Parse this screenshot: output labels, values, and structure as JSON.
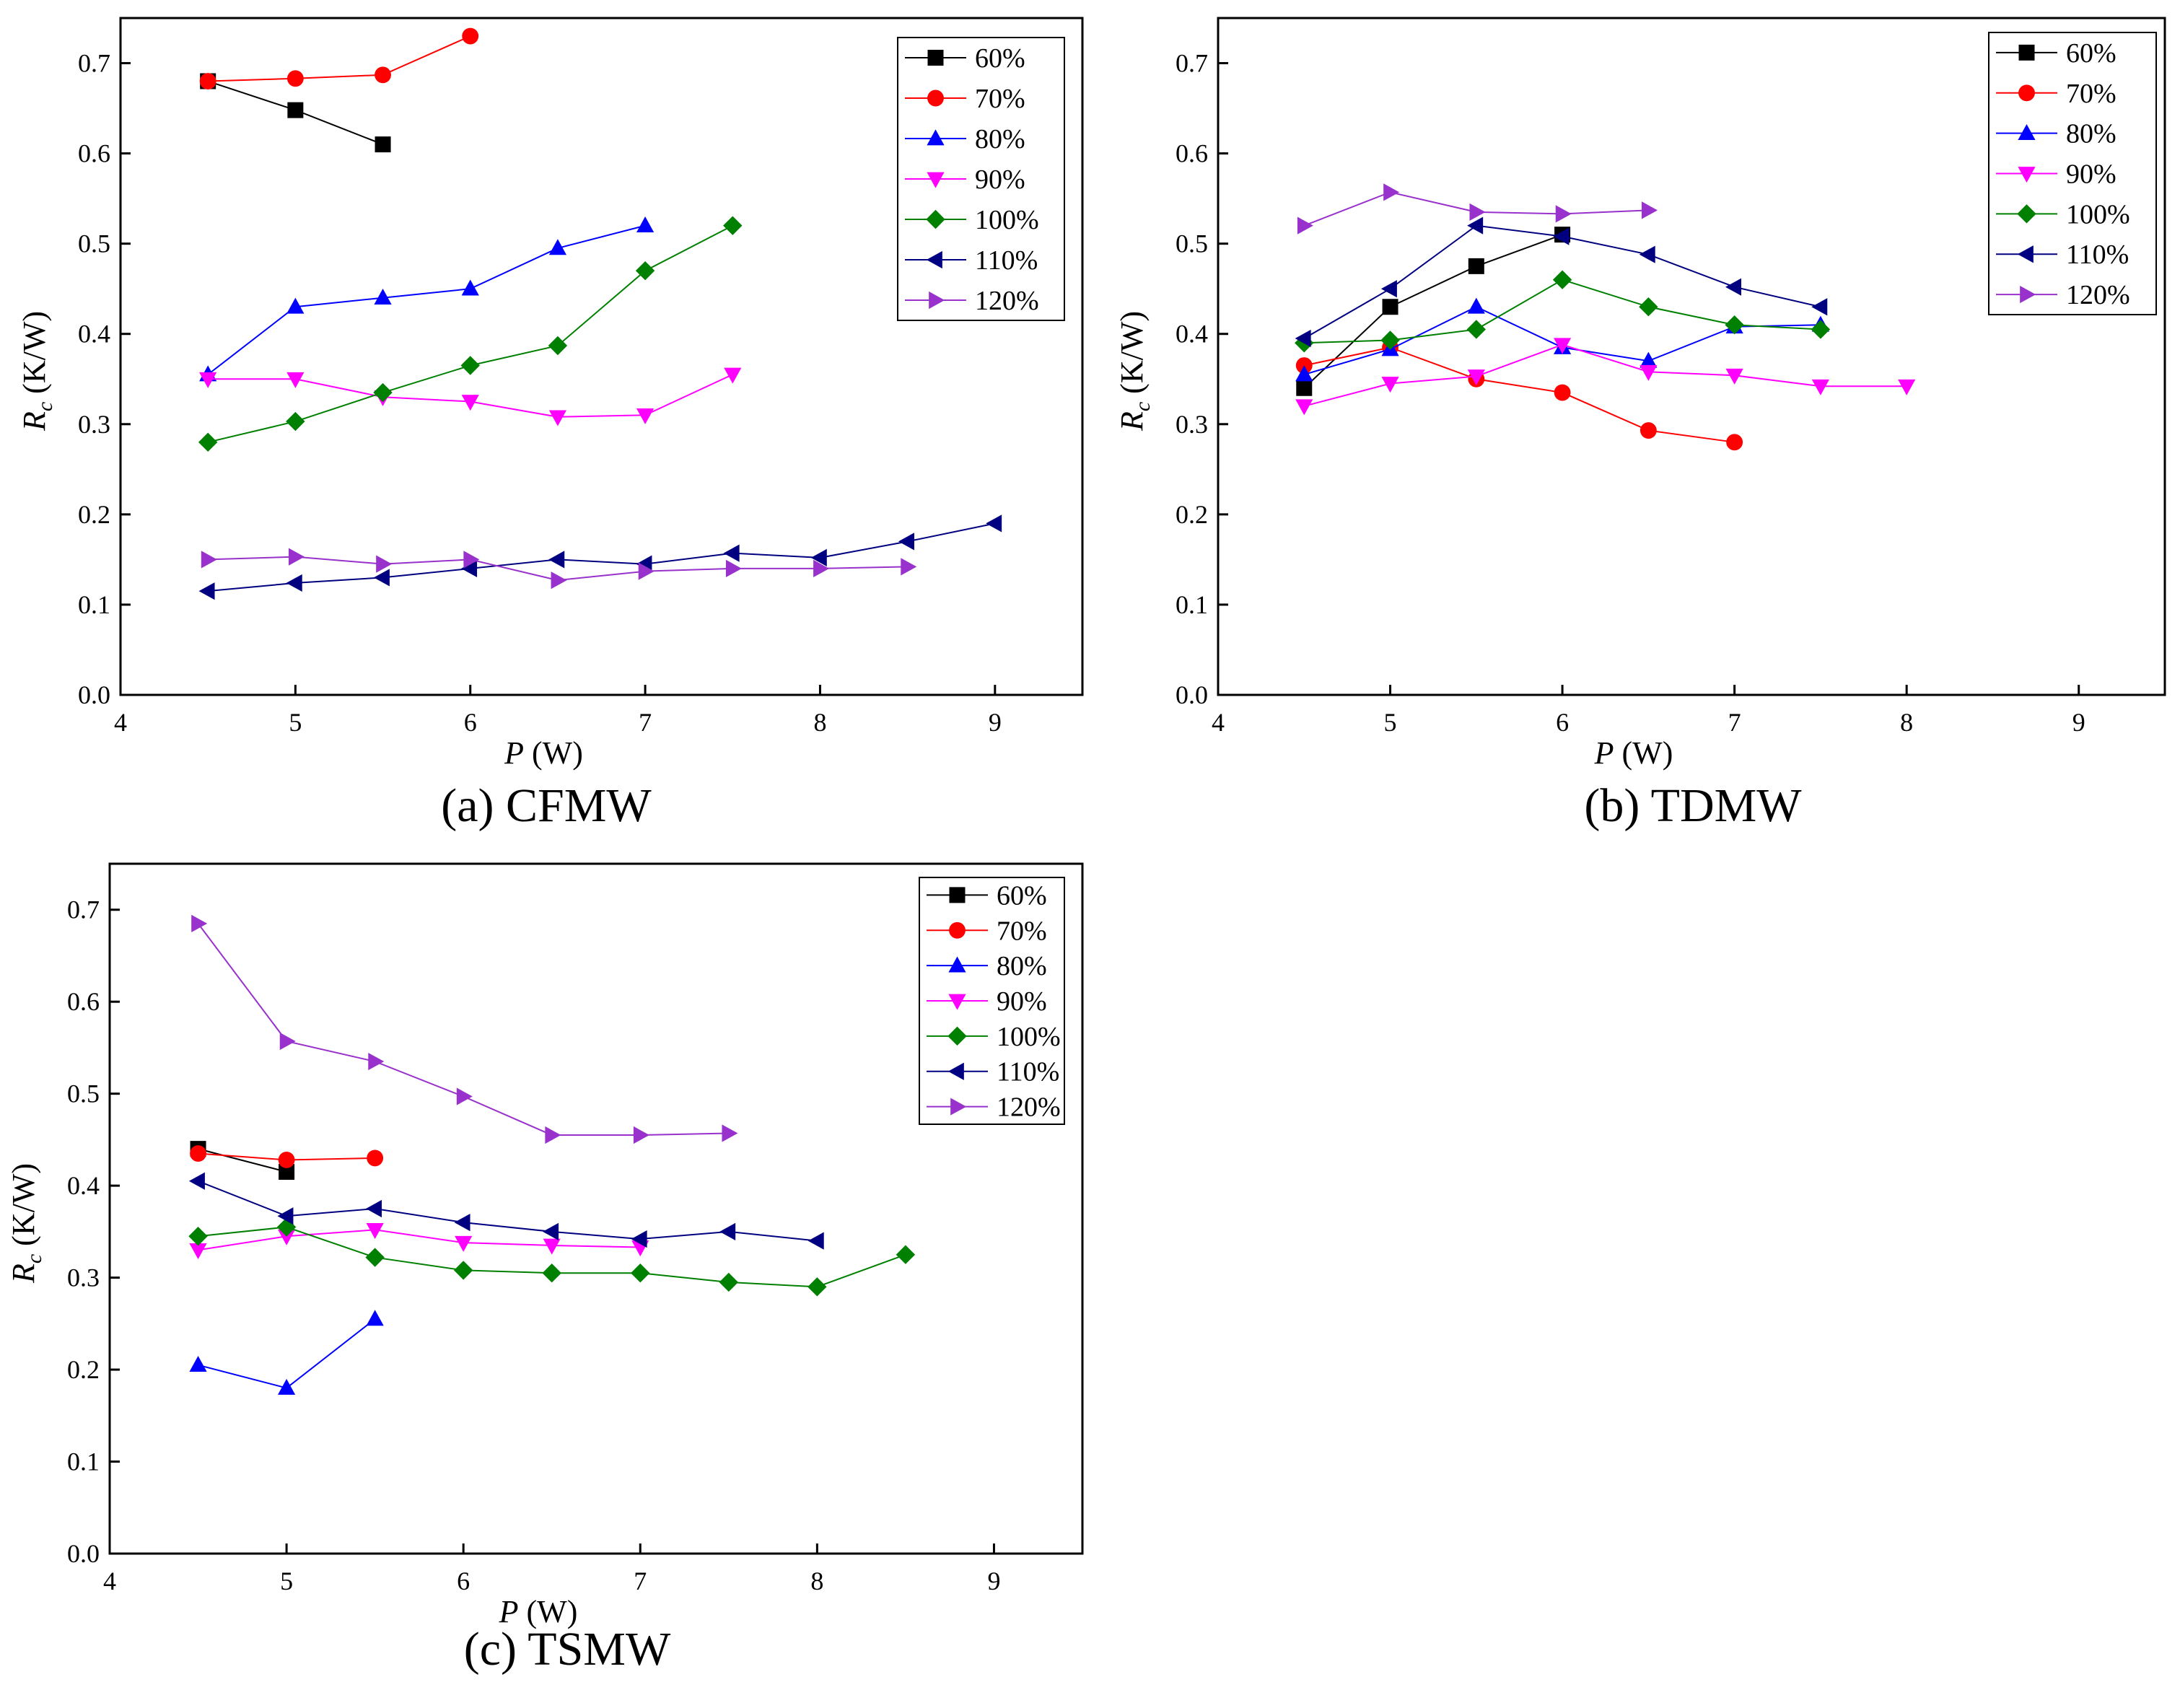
{
  "chart_data": [
    {
      "type": "line",
      "caption": "(a) CFMW",
      "xlabel_var": "P",
      "xlabel_unit": " (W)",
      "ylabel_var": "R",
      "ylabel_sub": "c",
      "ylabel_unit": " (K/W)",
      "xlim": [
        4,
        9.5
      ],
      "ylim": [
        0.0,
        0.75
      ],
      "xticks": [
        "4",
        "5",
        "6",
        "7",
        "8",
        "9"
      ],
      "yticks": [
        "0.0",
        "0.1",
        "0.2",
        "0.3",
        "0.4",
        "0.5",
        "0.6",
        "0.7"
      ],
      "legend_position": "top-right",
      "series": [
        {
          "name": "60%",
          "color": "#000000",
          "marker": "square",
          "x": [
            4.5,
            5.0,
            5.5
          ],
          "y": [
            0.68,
            0.648,
            0.61
          ]
        },
        {
          "name": "70%",
          "color": "#ff0000",
          "marker": "circle",
          "x": [
            4.5,
            5.0,
            5.5,
            6.0
          ],
          "y": [
            0.68,
            0.683,
            0.687,
            0.73
          ]
        },
        {
          "name": "80%",
          "color": "#0000ff",
          "marker": "triangle-up",
          "x": [
            4.5,
            5.0,
            5.5,
            6.0,
            6.5,
            7.0
          ],
          "y": [
            0.355,
            0.43,
            0.44,
            0.45,
            0.495,
            0.52
          ]
        },
        {
          "name": "90%",
          "color": "#ff00ff",
          "marker": "triangle-down",
          "x": [
            4.5,
            5.0,
            5.5,
            6.0,
            6.5,
            7.0,
            7.5
          ],
          "y": [
            0.35,
            0.35,
            0.33,
            0.325,
            0.308,
            0.31,
            0.355
          ]
        },
        {
          "name": "100%",
          "color": "#008000",
          "marker": "diamond",
          "x": [
            4.5,
            5.0,
            5.5,
            6.0,
            6.5,
            7.0,
            7.5
          ],
          "y": [
            0.28,
            0.303,
            0.335,
            0.365,
            0.387,
            0.47,
            0.52
          ]
        },
        {
          "name": "110%",
          "color": "#000080",
          "marker": "triangle-left",
          "x": [
            4.5,
            5.0,
            5.5,
            6.0,
            6.5,
            7.0,
            7.5,
            8.0,
            8.5,
            9.0
          ],
          "y": [
            0.115,
            0.124,
            0.13,
            0.14,
            0.15,
            0.145,
            0.157,
            0.152,
            0.17,
            0.19
          ]
        },
        {
          "name": "120%",
          "color": "#9932cc",
          "marker": "triangle-right",
          "x": [
            4.5,
            5.0,
            5.5,
            6.0,
            6.5,
            7.0,
            7.5,
            8.0,
            8.5
          ],
          "y": [
            0.15,
            0.153,
            0.145,
            0.15,
            0.127,
            0.137,
            0.14,
            0.14,
            0.142
          ]
        }
      ]
    },
    {
      "type": "line",
      "caption": "(b) TDMW",
      "xlabel_var": "P",
      "xlabel_unit": " (W)",
      "ylabel_var": "R",
      "ylabel_sub": "c",
      "ylabel_unit": " (K/W)",
      "xlim": [
        4,
        9.5
      ],
      "ylim": [
        0.0,
        0.75
      ],
      "xticks": [
        "4",
        "5",
        "6",
        "7",
        "8",
        "9"
      ],
      "yticks": [
        "0.0",
        "0.1",
        "0.2",
        "0.3",
        "0.4",
        "0.5",
        "0.6",
        "0.7"
      ],
      "legend_position": "top-right",
      "series": [
        {
          "name": "60%",
          "color": "#000000",
          "marker": "square",
          "x": [
            4.5,
            5.0,
            5.5,
            6.0
          ],
          "y": [
            0.34,
            0.43,
            0.475,
            0.51
          ]
        },
        {
          "name": "70%",
          "color": "#ff0000",
          "marker": "circle",
          "x": [
            4.5,
            5.0,
            5.5,
            6.0,
            6.5,
            7.0
          ],
          "y": [
            0.365,
            0.385,
            0.35,
            0.335,
            0.293,
            0.28
          ]
        },
        {
          "name": "80%",
          "color": "#0000ff",
          "marker": "triangle-up",
          "x": [
            4.5,
            5.0,
            5.5,
            6.0,
            6.5,
            7.0,
            7.5
          ],
          "y": [
            0.355,
            0.383,
            0.43,
            0.385,
            0.37,
            0.408,
            0.41
          ]
        },
        {
          "name": "90%",
          "color": "#ff00ff",
          "marker": "triangle-down",
          "x": [
            4.5,
            5.0,
            5.5,
            6.0,
            6.5,
            7.0,
            7.5,
            8.0
          ],
          "y": [
            0.32,
            0.345,
            0.353,
            0.388,
            0.358,
            0.354,
            0.342,
            0.342
          ]
        },
        {
          "name": "100%",
          "color": "#008000",
          "marker": "diamond",
          "x": [
            4.5,
            5.0,
            5.5,
            6.0,
            6.5,
            7.0,
            7.5
          ],
          "y": [
            0.39,
            0.393,
            0.405,
            0.46,
            0.43,
            0.41,
            0.405
          ]
        },
        {
          "name": "110%",
          "color": "#000080",
          "marker": "triangle-left",
          "x": [
            4.5,
            5.0,
            5.5,
            6.0,
            6.5,
            7.0,
            7.5
          ],
          "y": [
            0.395,
            0.45,
            0.52,
            0.508,
            0.488,
            0.452,
            0.43
          ]
        },
        {
          "name": "120%",
          "color": "#9932cc",
          "marker": "triangle-right",
          "x": [
            4.5,
            5.0,
            5.5,
            6.0,
            6.5
          ],
          "y": [
            0.52,
            0.557,
            0.535,
            0.533,
            0.537
          ]
        }
      ]
    },
    {
      "type": "line",
      "caption": "(c) TSMW",
      "xlabel_var": "P",
      "xlabel_unit": " (W)",
      "ylabel_var": "R",
      "ylabel_sub": "c",
      "ylabel_unit": " (K/W)",
      "xlim": [
        4,
        9.5
      ],
      "ylim": [
        0.0,
        0.75
      ],
      "xticks": [
        "4",
        "5",
        "6",
        "7",
        "8",
        "9"
      ],
      "yticks": [
        "0.0",
        "0.1",
        "0.2",
        "0.3",
        "0.4",
        "0.5",
        "0.6",
        "0.7"
      ],
      "legend_position": "top-right",
      "series": [
        {
          "name": "60%",
          "color": "#000000",
          "marker": "square",
          "x": [
            4.5,
            5.0
          ],
          "y": [
            0.44,
            0.415
          ]
        },
        {
          "name": "70%",
          "color": "#ff0000",
          "marker": "circle",
          "x": [
            4.5,
            5.0,
            5.5
          ],
          "y": [
            0.435,
            0.428,
            0.43
          ]
        },
        {
          "name": "80%",
          "color": "#0000ff",
          "marker": "triangle-up",
          "x": [
            4.5,
            5.0,
            5.5
          ],
          "y": [
            0.205,
            0.18,
            0.255
          ]
        },
        {
          "name": "90%",
          "color": "#ff00ff",
          "marker": "triangle-down",
          "x": [
            4.5,
            5.0,
            5.5,
            6.0,
            6.5,
            7.0
          ],
          "y": [
            0.33,
            0.345,
            0.352,
            0.338,
            0.335,
            0.333
          ]
        },
        {
          "name": "100%",
          "color": "#008000",
          "marker": "diamond",
          "x": [
            4.5,
            5.0,
            5.5,
            6.0,
            6.5,
            7.0,
            7.5,
            8.0,
            8.5
          ],
          "y": [
            0.345,
            0.355,
            0.322,
            0.308,
            0.305,
            0.305,
            0.295,
            0.29,
            0.325
          ]
        },
        {
          "name": "110%",
          "color": "#000080",
          "marker": "triangle-left",
          "x": [
            4.5,
            5.0,
            5.5,
            6.0,
            6.5,
            7.0,
            7.5,
            8.0
          ],
          "y": [
            0.405,
            0.367,
            0.375,
            0.36,
            0.35,
            0.342,
            0.35,
            0.34
          ]
        },
        {
          "name": "120%",
          "color": "#9932cc",
          "marker": "triangle-right",
          "x": [
            4.5,
            5.0,
            5.5,
            6.0,
            6.5,
            7.0,
            7.5
          ],
          "y": [
            0.685,
            0.557,
            0.535,
            0.497,
            0.455,
            0.455,
            0.457
          ]
        }
      ]
    }
  ]
}
